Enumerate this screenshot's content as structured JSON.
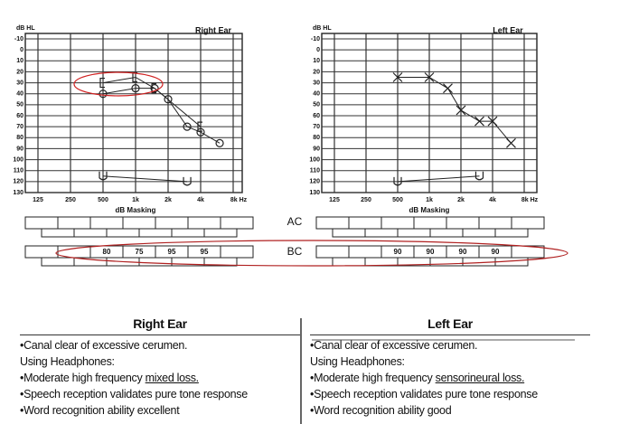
{
  "chart_data": [
    {
      "type": "line",
      "title": "Right Ear",
      "ylabel": "dB HL",
      "xlabel": "dB Masking",
      "xscale": "log",
      "xlim": [
        125,
        8000
      ],
      "ylim": [
        -10,
        130
      ],
      "yinverted": true,
      "xticks": [
        125,
        250,
        500,
        {
          "value": 1000,
          "label": "1k"
        },
        {
          "value": 2000,
          "label": "2k"
        },
        {
          "value": 4000,
          "label": "4k"
        },
        {
          "value": 8000,
          "label": "8k Hz"
        }
      ],
      "yticks": [
        -10,
        0,
        10,
        20,
        30,
        40,
        50,
        60,
        70,
        80,
        90,
        100,
        110,
        120,
        130
      ],
      "grid": true,
      "series": [
        {
          "marker": "o",
          "color": "#222222",
          "x": [
            500,
            1000,
            1500,
            2000,
            3000,
            4000,
            6000
          ],
          "values": [
            40,
            35,
            35,
            45,
            70,
            75,
            85
          ]
        },
        {
          "marker": "[",
          "color": "#222222",
          "x": [
            500,
            1000,
            1500,
            4000
          ],
          "values": [
            30,
            25,
            35,
            70
          ]
        },
        {
          "marker": "U",
          "color": "#222222",
          "x": [
            500,
            3000
          ],
          "values": [
            115,
            120
          ]
        }
      ]
    },
    {
      "type": "line",
      "title": "Left Ear",
      "ylabel": "dB HL",
      "xlabel": "dB Masking",
      "xscale": "log",
      "xlim": [
        125,
        8000
      ],
      "ylim": [
        -10,
        130
      ],
      "yinverted": true,
      "xticks": [
        125,
        250,
        500,
        {
          "value": 1000,
          "label": "1k"
        },
        {
          "value": 2000,
          "label": "2k"
        },
        {
          "value": 4000,
          "label": "4k"
        },
        {
          "value": 8000,
          "label": "8k Hz"
        }
      ],
      "yticks": [
        -10,
        0,
        10,
        20,
        30,
        40,
        50,
        60,
        70,
        80,
        90,
        100,
        110,
        120,
        130
      ],
      "grid": true,
      "series": [
        {
          "marker": "x",
          "color": "#222222",
          "x": [
            500,
            1000,
            1500,
            2000,
            3000,
            4000,
            6000
          ],
          "values": [
            25,
            25,
            35,
            55,
            65,
            65,
            85
          ]
        },
        {
          "marker": "U",
          "color": "#222222",
          "x": [
            500,
            3000
          ],
          "values": [
            120,
            115
          ]
        }
      ]
    }
  ],
  "masking": {
    "ac_label": "AC",
    "bc_label": "BC",
    "right_bc": [
      80,
      75,
      95,
      95
    ],
    "left_bc": [
      90,
      90,
      90,
      90
    ]
  },
  "notes": {
    "right": {
      "title": "Right Ear",
      "lines": [
        "•Canal clear of excessive cerumen.",
        "Using Headphones:",
        [
          "•Moderate high frequency ",
          "mixed loss."
        ],
        "•Speech reception validates pure tone response",
        "•Word recognition ability excellent"
      ]
    },
    "left": {
      "title": "Left Ear",
      "lines": [
        "•Canal clear of excessive cerumen.",
        "Using Headphones:",
        [
          "•Moderate high frequency ",
          "sensorineural loss."
        ],
        "•Speech reception validates pure tone response",
        "•Word recognition ability good"
      ]
    }
  }
}
